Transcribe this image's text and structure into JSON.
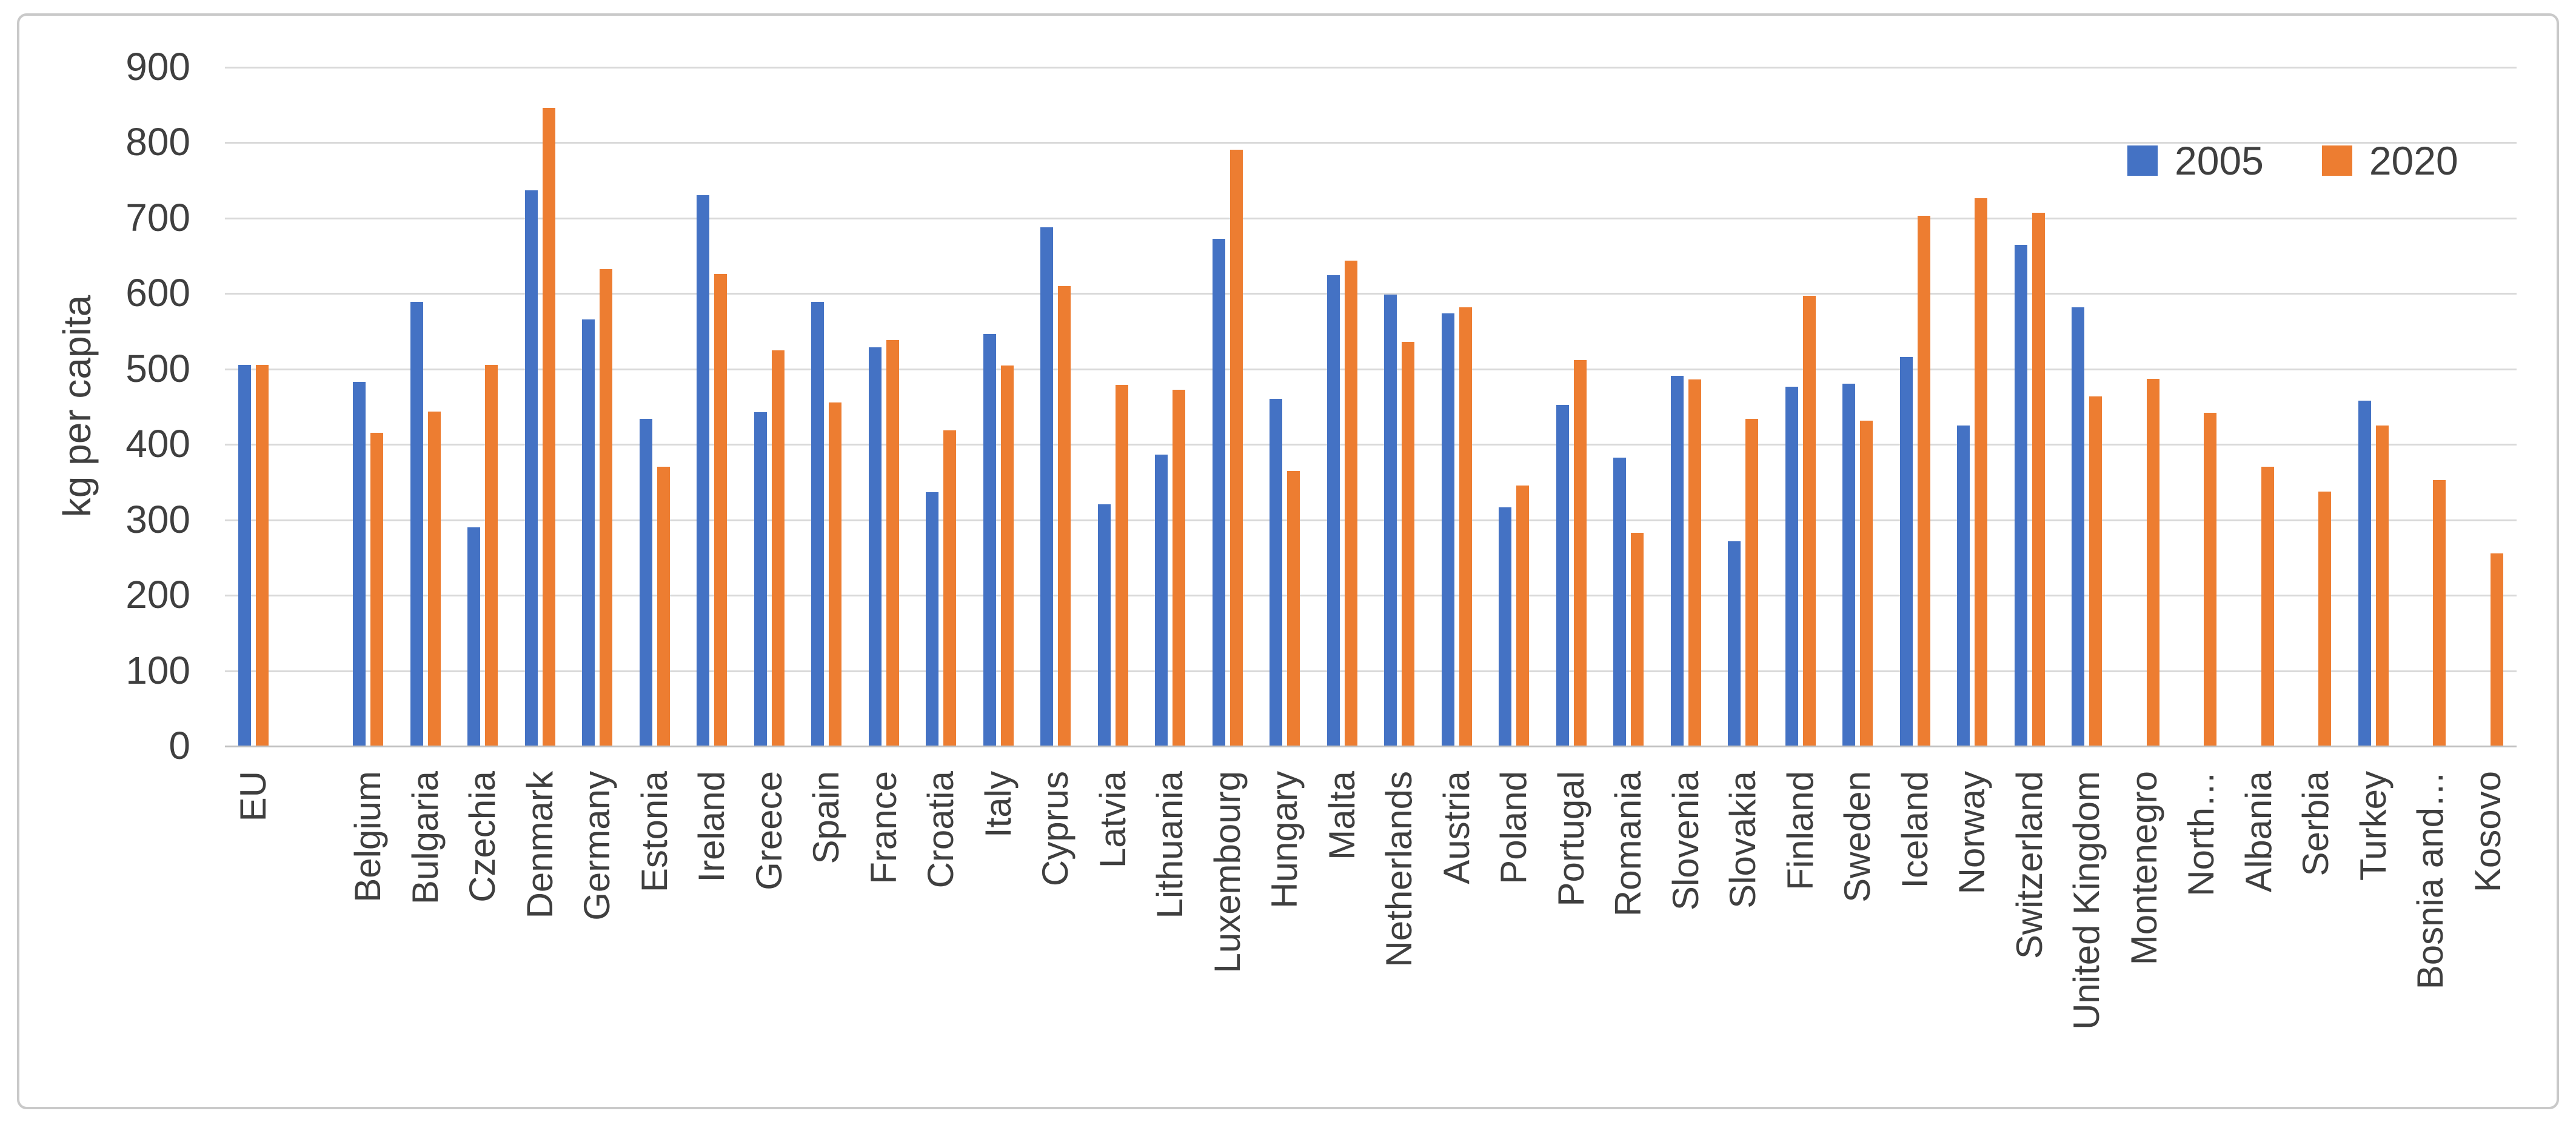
{
  "chart_data": {
    "type": "bar",
    "title": "",
    "xlabel": "",
    "ylabel": "kg per capita",
    "ylim": [
      0,
      900
    ],
    "ytick_step": 100,
    "yticks": [
      0,
      100,
      200,
      300,
      400,
      500,
      600,
      700,
      800,
      900
    ],
    "grid": "horizontal",
    "legend_position": "top-right",
    "categories": [
      "EU",
      "Belgium",
      "Bulgaria",
      "Czechia",
      "Denmark",
      "Germany",
      "Estonia",
      "Ireland",
      "Greece",
      "Spain",
      "France",
      "Croatia",
      "Italy",
      "Cyprus",
      "Latvia",
      "Lithuania",
      "Luxembourg",
      "Hungary",
      "Malta",
      "Netherlands",
      "Austria",
      "Poland",
      "Portugal",
      "Romania",
      "Slovenia",
      "Slovakia",
      "Finland",
      "Sweden",
      "Iceland",
      "Norway",
      "Switzerland",
      "United Kingdom",
      "Montenegro",
      "North…",
      "Albania",
      "Serbia",
      "Turkey",
      "Bosnia and…",
      "Kosovo"
    ],
    "series": [
      {
        "name": "2005",
        "color": "#4472C4",
        "values": [
          505,
          482,
          588,
          289,
          736,
          565,
          433,
          730,
          442,
          588,
          528,
          336,
          546,
          687,
          320,
          386,
          672,
          460,
          624,
          598,
          573,
          316,
          452,
          382,
          490,
          271,
          476,
          480,
          515,
          424,
          664,
          581,
          null,
          null,
          null,
          null,
          457,
          null,
          null
        ]
      },
      {
        "name": "2020",
        "color": "#ED7D31",
        "values": [
          505,
          415,
          443,
          505,
          845,
          632,
          370,
          625,
          524,
          455,
          538,
          418,
          504,
          609,
          478,
          472,
          790,
          364,
          643,
          535,
          581,
          345,
          511,
          282,
          485,
          433,
          596,
          431,
          702,
          726,
          706,
          463,
          486,
          441,
          370,
          337,
          424,
          352,
          255
        ]
      }
    ]
  }
}
